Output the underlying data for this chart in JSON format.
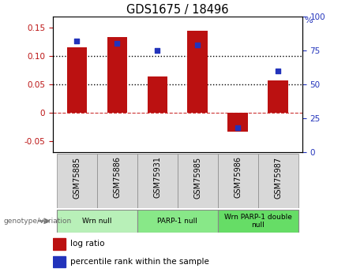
{
  "title": "GDS1675 / 18496",
  "samples": [
    "GSM75885",
    "GSM75886",
    "GSM75931",
    "GSM75985",
    "GSM75986",
    "GSM75987"
  ],
  "log_ratios": [
    0.115,
    0.133,
    0.064,
    0.145,
    -0.033,
    0.057
  ],
  "percentile_ranks": [
    82,
    80,
    75,
    79,
    18,
    60
  ],
  "groups": [
    {
      "label": "Wrn null",
      "start": 0,
      "end": 2,
      "color": "#b8f0b8"
    },
    {
      "label": "PARP-1 null",
      "start": 2,
      "end": 4,
      "color": "#88e888"
    },
    {
      "label": "Wrn PARP-1 double\nnull",
      "start": 4,
      "end": 6,
      "color": "#66dd66"
    }
  ],
  "ylim_left": [
    -0.07,
    0.17
  ],
  "ylim_right": [
    0,
    100
  ],
  "yticks_left": [
    -0.05,
    0.0,
    0.05,
    0.1,
    0.15
  ],
  "yticks_right": [
    0,
    25,
    50,
    75,
    100
  ],
  "bar_color": "#bb1111",
  "dot_color": "#2233bb",
  "hline_color": "#cc3333",
  "dotted_line_color": "black",
  "grid_lines": [
    0.05,
    0.1
  ],
  "sample_bg_color": "#d8d8d8",
  "bar_width": 0.5
}
